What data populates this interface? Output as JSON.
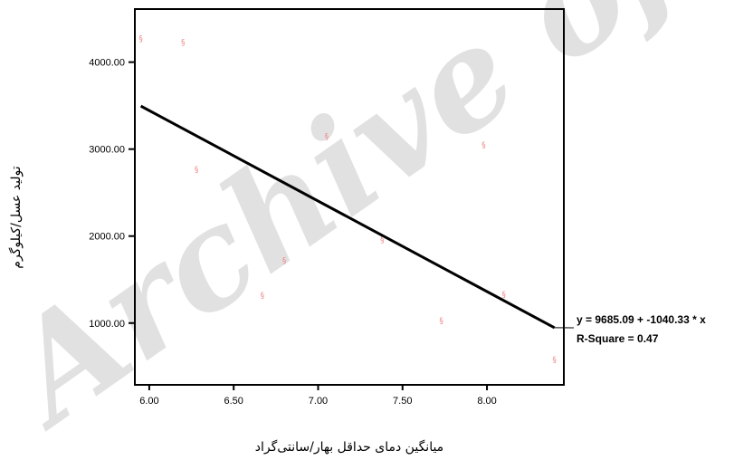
{
  "watermark": "Archive of",
  "chart_data": {
    "type": "scatter",
    "xlabel": "میانگین دمای حداقل بهار/سانتی‌گراد",
    "ylabel": "تولید عسل/کیلوگرم",
    "xlim": [
      5.92,
      8.45
    ],
    "ylim": [
      300,
      4600
    ],
    "x_ticks": [
      "6.00",
      "6.50",
      "7.00",
      "7.50",
      "8.00"
    ],
    "y_ticks": [
      "1000.00",
      "2000.00",
      "3000.00",
      "4000.00"
    ],
    "grid": false,
    "points": [
      {
        "x": 5.95,
        "y": 4270
      },
      {
        "x": 6.2,
        "y": 4230
      },
      {
        "x": 6.28,
        "y": 2770
      },
      {
        "x": 6.67,
        "y": 1320
      },
      {
        "x": 6.8,
        "y": 1720
      },
      {
        "x": 7.05,
        "y": 3150
      },
      {
        "x": 7.38,
        "y": 1960
      },
      {
        "x": 7.73,
        "y": 1030
      },
      {
        "x": 7.98,
        "y": 3050
      },
      {
        "x": 8.1,
        "y": 1330
      },
      {
        "x": 8.4,
        "y": 580
      }
    ],
    "point_marker": "§",
    "point_color": "#f08a8a",
    "fit_line": {
      "intercept": 9685.09,
      "slope": -1040.33,
      "x_range": [
        5.95,
        8.4
      ],
      "color": "#000000"
    },
    "annotation": {
      "equation": "y = 9685.09 + -1040.33 * x",
      "r_square": "R-Square = 0.47"
    }
  }
}
